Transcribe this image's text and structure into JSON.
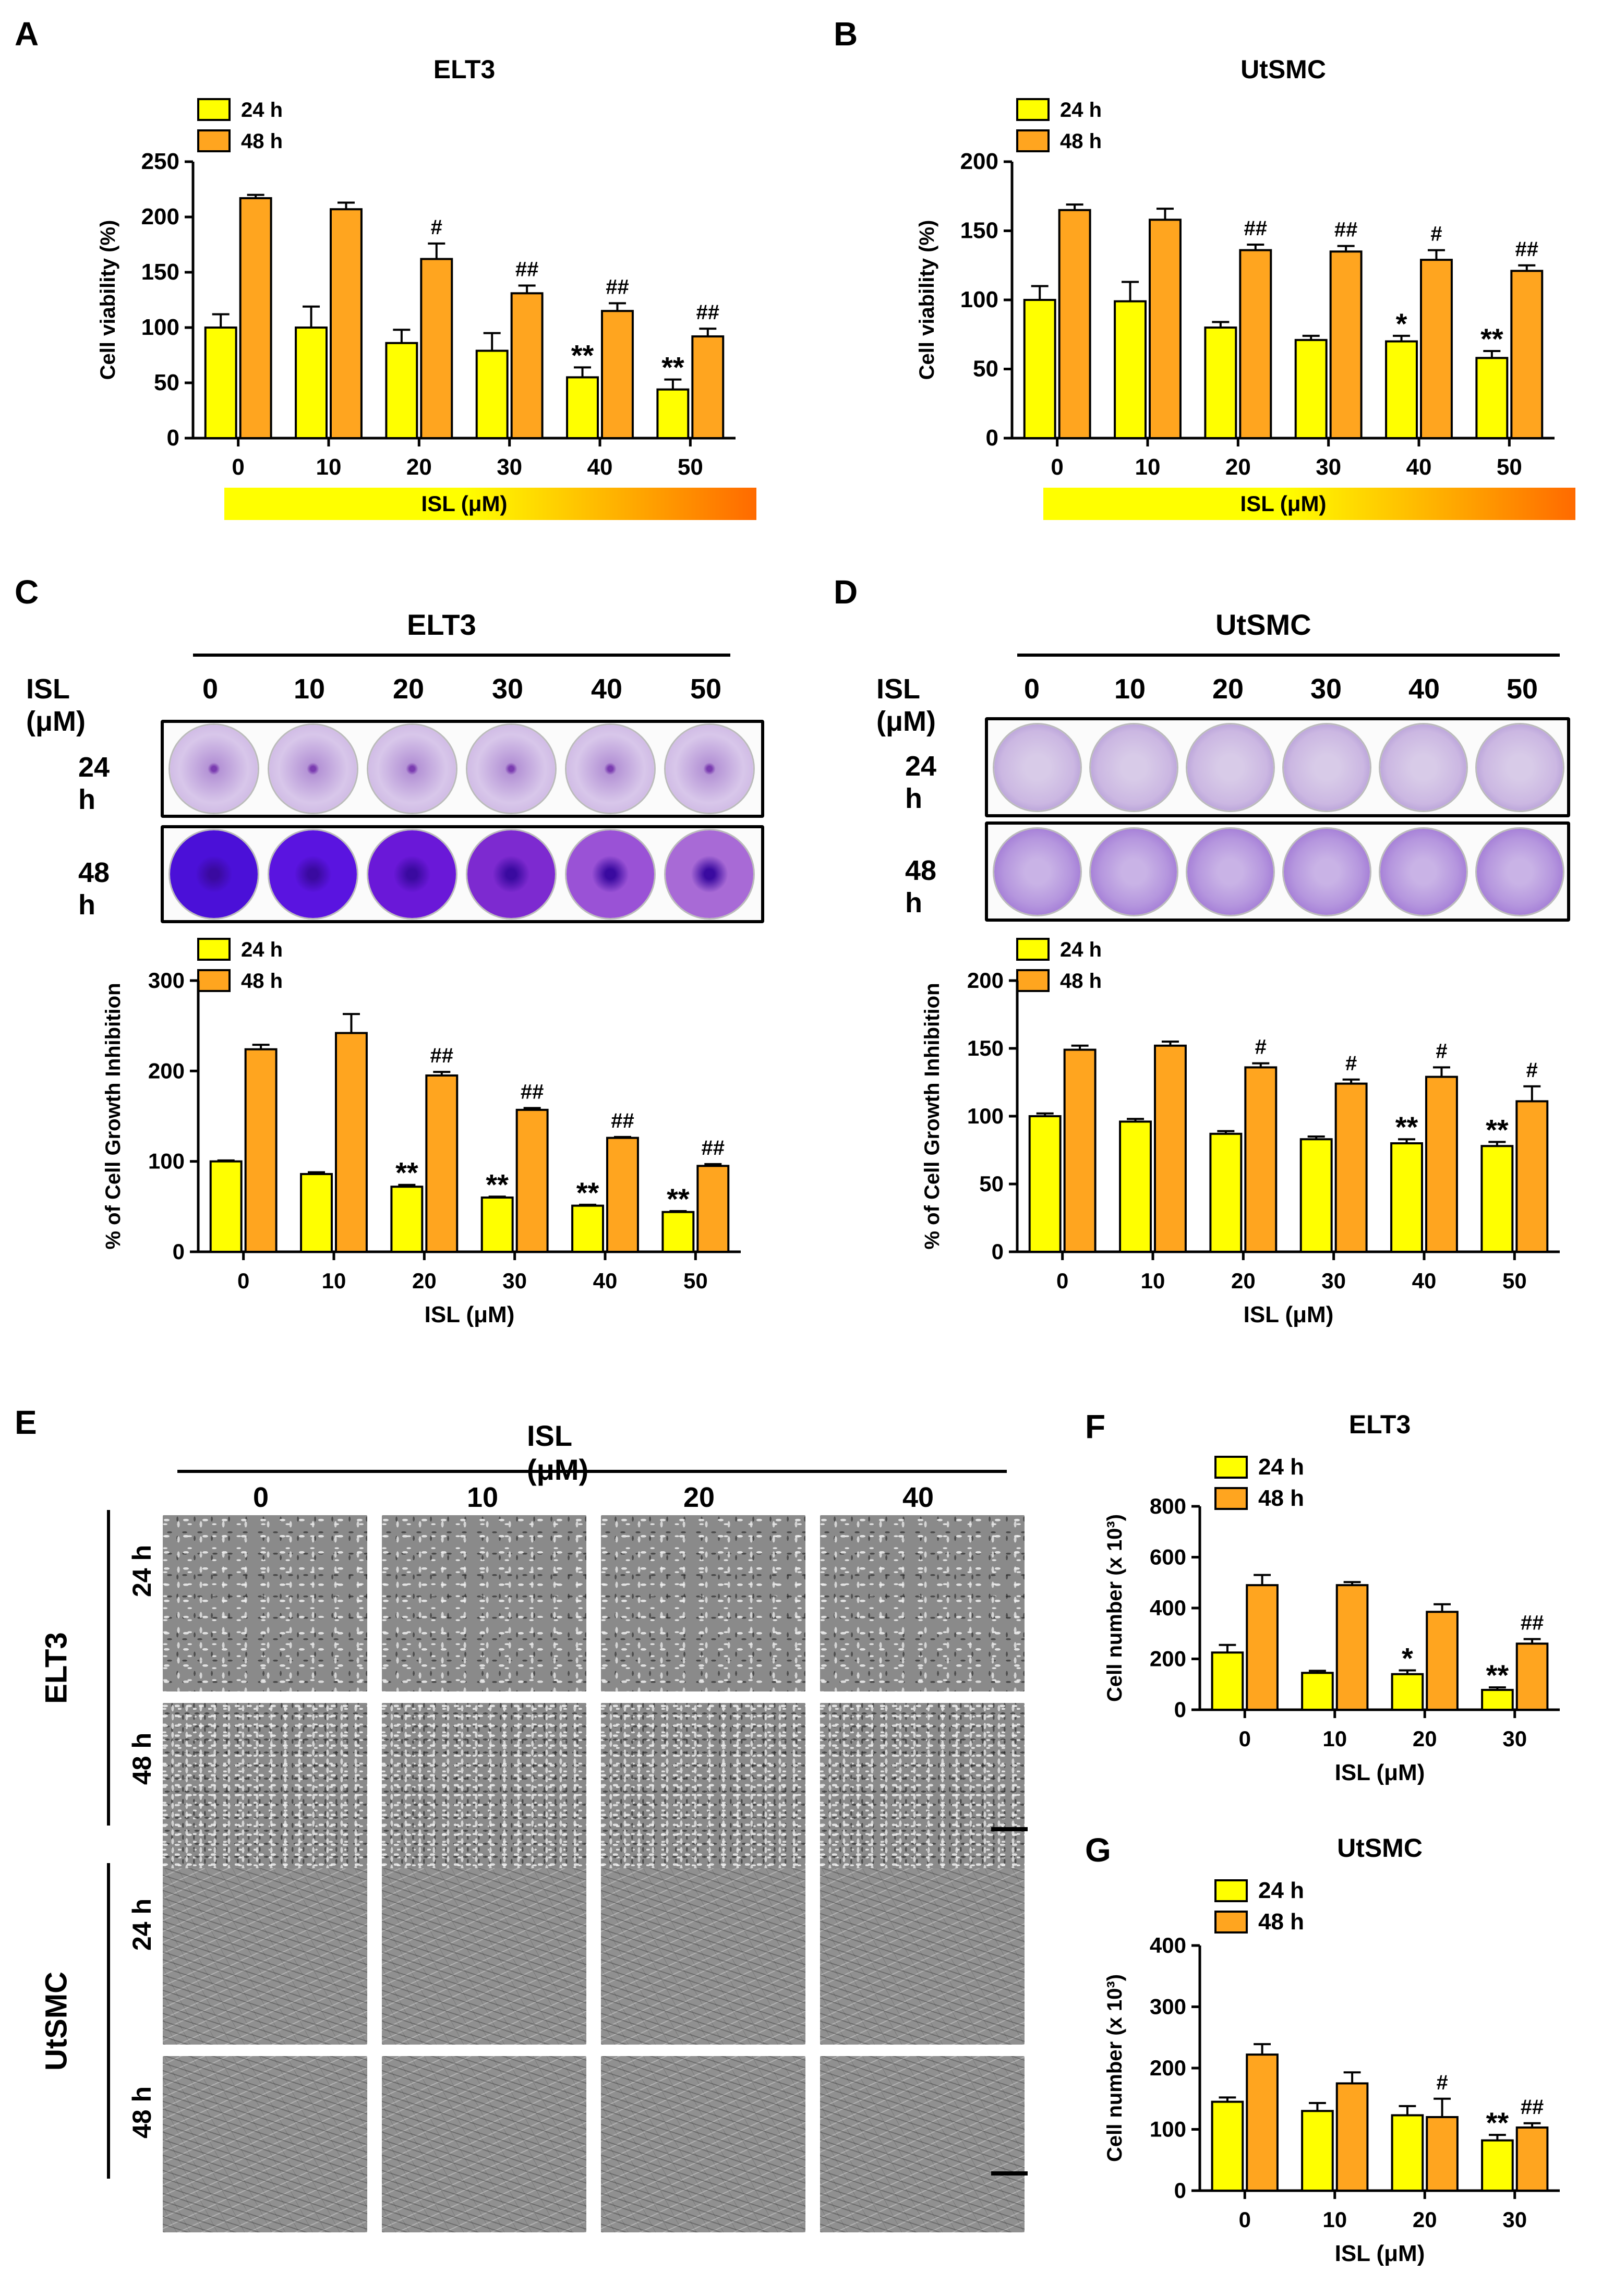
{
  "panels": {
    "A": "A",
    "B": "B",
    "C": "C",
    "D": "D",
    "E": "E",
    "F": "F",
    "G": "G"
  },
  "colors": {
    "h24": "#ffff00",
    "h48": "#ffa51f",
    "axis": "#000000",
    "gradient_start": "#ffff00",
    "gradient_end": "#ff6a00"
  },
  "chart_data": [
    {
      "id": "A",
      "type": "bar",
      "title": "ELT3",
      "ylabel": "Cell viability (%)",
      "xlabel": "ISL (μM)",
      "xlabel_style": "gradient-bar",
      "categories": [
        "0",
        "10",
        "20",
        "30",
        "40",
        "50"
      ],
      "ylim": [
        0,
        250
      ],
      "yticks": [
        "0",
        "50",
        "100",
        "150",
        "200",
        "250"
      ],
      "series": [
        {
          "name": "24 h",
          "values": [
            100,
            100,
            86,
            79,
            55,
            44
          ],
          "errors": [
            12,
            19,
            12,
            16,
            9,
            9
          ],
          "annotations": [
            "",
            "",
            "",
            "",
            "**",
            "**"
          ]
        },
        {
          "name": "48 h",
          "values": [
            217,
            207,
            162,
            131,
            115,
            92
          ],
          "errors": [
            3,
            6,
            14,
            7,
            7,
            7
          ],
          "annotations": [
            "",
            "",
            "#",
            "##",
            "##",
            "##"
          ]
        }
      ],
      "legend": "top-left"
    },
    {
      "id": "B",
      "type": "bar",
      "title": "UtSMC",
      "ylabel": "Cell viability (%)",
      "xlabel": "ISL (μM)",
      "xlabel_style": "gradient-bar",
      "categories": [
        "0",
        "10",
        "20",
        "30",
        "40",
        "50"
      ],
      "ylim": [
        0,
        200
      ],
      "yticks": [
        "0",
        "50",
        "100",
        "150",
        "200"
      ],
      "series": [
        {
          "name": "24 h",
          "values": [
            100,
            99,
            80,
            71,
            70,
            58
          ],
          "errors": [
            10,
            14,
            4,
            3,
            4,
            5
          ],
          "annotations": [
            "",
            "",
            "",
            "",
            "*",
            "**"
          ]
        },
        {
          "name": "48 h",
          "values": [
            165,
            158,
            136,
            135,
            129,
            121
          ],
          "errors": [
            4,
            8,
            4,
            4,
            7,
            4
          ],
          "annotations": [
            "",
            "",
            "##",
            "##",
            "#",
            "##"
          ]
        }
      ],
      "legend": "top-left"
    },
    {
      "id": "C",
      "type": "bar",
      "ylabel": "% of Cell Growth Inhibition",
      "xlabel": "ISL (μM)",
      "categories": [
        "0",
        "10",
        "20",
        "30",
        "40",
        "50"
      ],
      "ylim": [
        0,
        300
      ],
      "yticks": [
        "0",
        "100",
        "200",
        "300"
      ],
      "series": [
        {
          "name": "24 h",
          "values": [
            100,
            86,
            72,
            60,
            51,
            44
          ],
          "errors": [
            1,
            2,
            2,
            1,
            1,
            1
          ],
          "annotations": [
            "",
            "",
            "**",
            "**",
            "**",
            "**"
          ]
        },
        {
          "name": "48 h",
          "values": [
            224,
            242,
            195,
            157,
            126,
            95
          ],
          "errors": [
            5,
            21,
            4,
            2,
            1,
            2
          ],
          "annotations": [
            "",
            "",
            "##",
            "##",
            "##",
            "##"
          ]
        }
      ],
      "legend": "top-left"
    },
    {
      "id": "D",
      "type": "bar",
      "ylabel": "% of Cell Growth Inhibition",
      "xlabel": "ISL (μM)",
      "categories": [
        "0",
        "10",
        "20",
        "30",
        "40",
        "50"
      ],
      "ylim": [
        0,
        200
      ],
      "yticks": [
        "0",
        "50",
        "100",
        "150",
        "200"
      ],
      "series": [
        {
          "name": "24 h",
          "values": [
            100,
            96,
            87,
            83,
            80,
            78
          ],
          "errors": [
            2,
            2,
            2,
            2,
            3,
            3
          ],
          "annotations": [
            "",
            "",
            "",
            "",
            "**",
            "**"
          ]
        },
        {
          "name": "48 h",
          "values": [
            149,
            152,
            136,
            124,
            129,
            111
          ],
          "errors": [
            3,
            3,
            3,
            3,
            7,
            11
          ],
          "annotations": [
            "",
            "",
            "#",
            "#",
            "#",
            "#"
          ]
        }
      ],
      "legend": "top-left"
    },
    {
      "id": "F",
      "type": "bar",
      "title": "ELT3",
      "ylabel": "Cell number (x 10³)",
      "xlabel": "ISL (μM)",
      "categories": [
        "0",
        "10",
        "20",
        "30"
      ],
      "ylim": [
        0,
        800
      ],
      "yticks": [
        "0",
        "200",
        "400",
        "600",
        "800"
      ],
      "series": [
        {
          "name": "24 h",
          "values": [
            225,
            145,
            140,
            78
          ],
          "errors": [
            30,
            8,
            15,
            10
          ],
          "annotations": [
            "",
            "",
            "*",
            "**"
          ]
        },
        {
          "name": "48 h",
          "values": [
            490,
            490,
            385,
            260
          ],
          "errors": [
            40,
            12,
            30,
            18
          ],
          "annotations": [
            "",
            "",
            "",
            "##"
          ]
        }
      ],
      "legend": "top-left"
    },
    {
      "id": "G",
      "type": "bar",
      "title": "UtSMC",
      "ylabel": "Cell number (x 10³)",
      "xlabel": "ISL (μM)",
      "categories": [
        "0",
        "10",
        "20",
        "30"
      ],
      "ylim": [
        0,
        400
      ],
      "yticks": [
        "0",
        "100",
        "200",
        "300",
        "400"
      ],
      "series": [
        {
          "name": "24 h",
          "values": [
            145,
            130,
            123,
            82
          ],
          "errors": [
            7,
            13,
            15,
            9
          ],
          "annotations": [
            "",
            "",
            "",
            "**"
          ]
        },
        {
          "name": "48 h",
          "values": [
            222,
            175,
            120,
            103
          ],
          "errors": [
            17,
            18,
            30,
            7
          ],
          "annotations": [
            "",
            "",
            "#",
            "##"
          ]
        }
      ],
      "legend": "top-left"
    }
  ],
  "plate_C": {
    "title": "ELT3",
    "dose_label": "ISL (μM)",
    "doses": [
      "0",
      "10",
      "20",
      "30",
      "40",
      "50"
    ],
    "rows": [
      "24 h",
      "48 h"
    ]
  },
  "plate_D": {
    "title": "UtSMC",
    "dose_label": "ISL (μM)",
    "doses": [
      "0",
      "10",
      "20",
      "30",
      "40",
      "50"
    ],
    "rows": [
      "24 h",
      "48 h"
    ]
  },
  "micro_E": {
    "dose_label": "ISL (μM)",
    "doses": [
      "0",
      "10",
      "20",
      "40"
    ],
    "groups": [
      "ELT3",
      "UtSMC"
    ],
    "rows": [
      "24 h",
      "48 h"
    ]
  }
}
